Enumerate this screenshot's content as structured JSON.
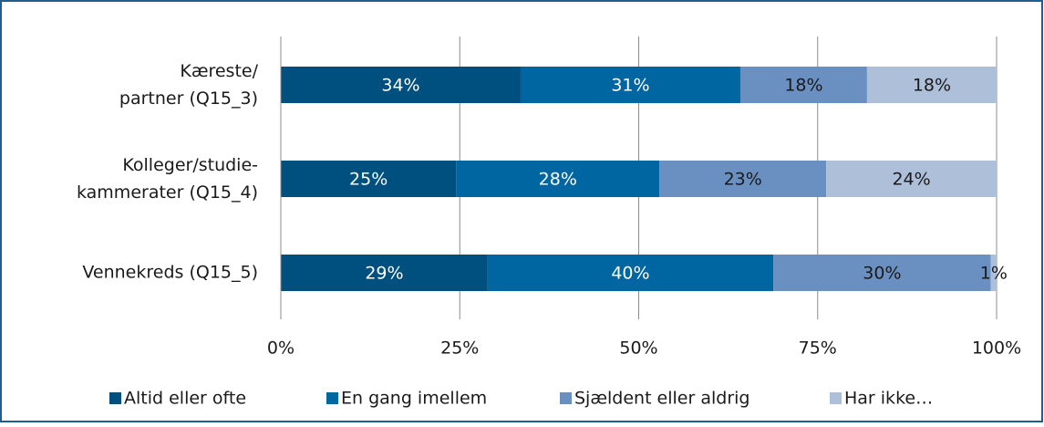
{
  "chart_data": {
    "type": "stacked-bar-horizontal",
    "categories": [
      "Kæreste/\npartner (Q15_3)",
      "Kolleger/studie-\nkammerater (Q15_4)",
      "Vennekreds (Q15_5)"
    ],
    "series": [
      {
        "name": "Altid eller ofte",
        "color": "#00507f",
        "values": [
          33.5,
          24.5,
          28.9
        ],
        "value_labels": [
          "34%",
          "25%",
          "29%"
        ]
      },
      {
        "name": "En gang imellem",
        "color": "#0066a1",
        "values": [
          30.7,
          28.4,
          39.9
        ],
        "value_labels": [
          "31%",
          "28%",
          "40%"
        ]
      },
      {
        "name": "Sjældent eller aldrig",
        "color": "#6a8fc1",
        "values": [
          17.7,
          23.3,
          30.4
        ],
        "value_labels": [
          "18%",
          "23%",
          "30%"
        ]
      },
      {
        "name": "Har ikke…",
        "color": "#aec0d9",
        "values": [
          18.1,
          23.8,
          0.8
        ],
        "value_labels": [
          "18%",
          "24%",
          "1%"
        ]
      }
    ],
    "xlim": [
      0,
      100
    ],
    "xticks": [
      {
        "value": 0,
        "label": "0%"
      },
      {
        "value": 25,
        "label": "25%"
      },
      {
        "value": 50,
        "label": "50%"
      },
      {
        "value": 75,
        "label": "75%"
      },
      {
        "value": 100,
        "label": "100%"
      }
    ],
    "grid": true,
    "legend": "bottom"
  }
}
